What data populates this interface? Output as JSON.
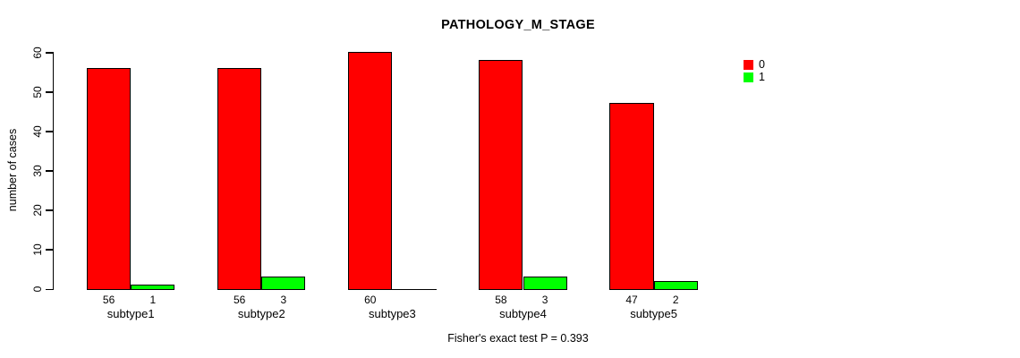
{
  "chart_data": {
    "type": "bar",
    "title": "PATHOLOGY_M_STAGE",
    "categories": [
      "subtype1",
      "subtype2",
      "subtype3",
      "subtype4",
      "subtype5"
    ],
    "series": [
      {
        "name": "0",
        "color": "#FF0000",
        "values": [
          56,
          56,
          60,
          58,
          47
        ]
      },
      {
        "name": "1",
        "color": "#00FF00",
        "values": [
          1,
          3,
          0,
          3,
          2
        ]
      }
    ],
    "xlabel": "",
    "ylabel": "number of cases",
    "ylim": [
      0,
      60
    ],
    "yticks": [
      0,
      10,
      20,
      30,
      40,
      50,
      60
    ],
    "grid": false,
    "legend_position": "top-right",
    "bar_value_labels_shown_when_positive": true,
    "annotation": "Fisher's exact test P = 0.393"
  }
}
